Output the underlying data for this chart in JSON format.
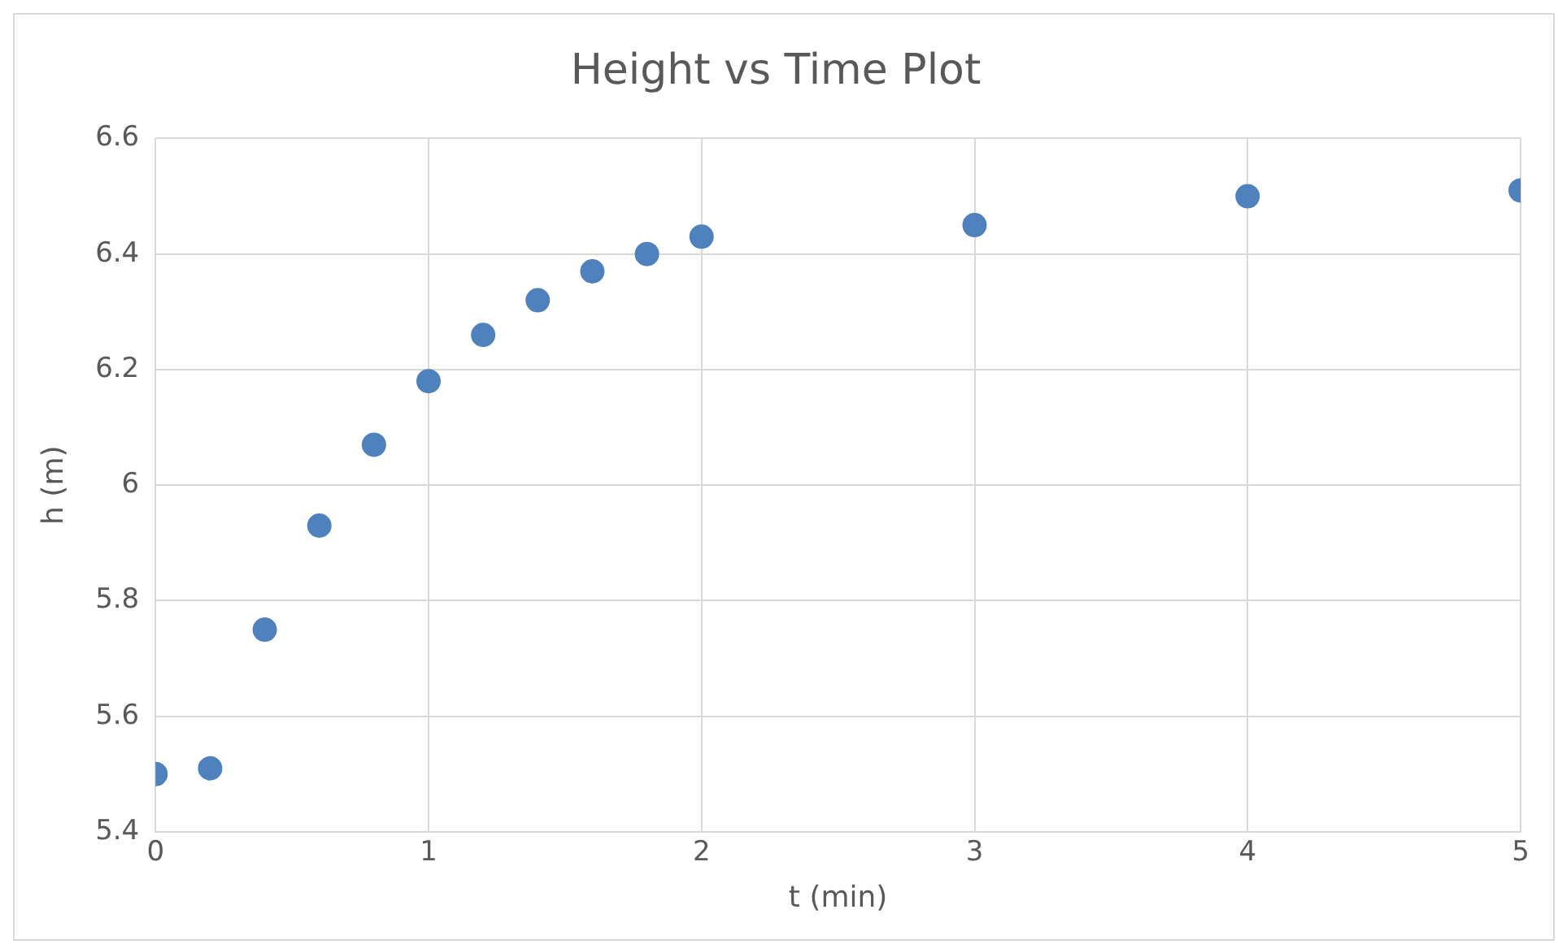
{
  "chart_data": {
    "type": "scatter",
    "title": "Height vs Time Plot",
    "xlabel": "t (min)",
    "ylabel": "h (m)",
    "x": [
      0,
      0.2,
      0.4,
      0.6,
      0.8,
      1.0,
      1.2,
      1.4,
      1.6,
      1.8,
      2,
      3,
      4,
      5
    ],
    "series": [
      {
        "color": "#4f81bd",
        "values": [
          5.5,
          5.51,
          5.75,
          5.93,
          6.07,
          6.18,
          6.26,
          6.32,
          6.37,
          6.4,
          6.43,
          6.45,
          6.5,
          6.51
        ]
      }
    ],
    "xlim": [
      0,
      5
    ],
    "xticks": [
      0,
      1,
      2,
      3,
      4,
      5
    ],
    "ylim": [
      5.4,
      6.6
    ],
    "yticks": [
      5.4,
      5.6,
      5.8,
      6,
      6.2,
      6.4,
      6.6
    ],
    "grid": true,
    "marker": "circle",
    "legend": false
  }
}
